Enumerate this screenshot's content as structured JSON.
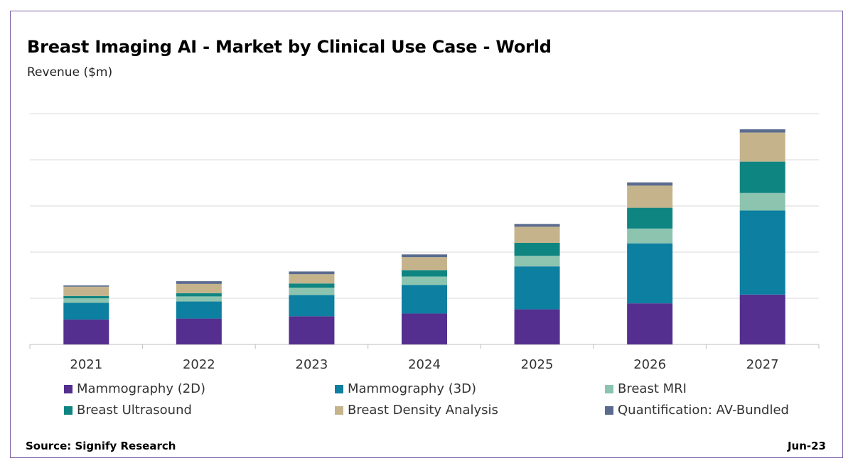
{
  "chart_data": {
    "type": "bar",
    "stacked": true,
    "title": "Breast Imaging AI - Market by Clinical Use Case - World",
    "subtitle": "Revenue ($m)",
    "ylabel": "",
    "xlabel": "",
    "categories": [
      "2021",
      "2022",
      "2023",
      "2024",
      "2025",
      "2026",
      "2027"
    ],
    "y_tick_labels_shown": false,
    "ylim": [
      0,
      500
    ],
    "grid": true,
    "legend_position": "bottom",
    "series": [
      {
        "name": "Mammography (2D)",
        "color": "#542f8f",
        "values": [
          54,
          56,
          61,
          67,
          76,
          89,
          108
        ]
      },
      {
        "name": "Mammography (3D)",
        "color": "#0d7fa0",
        "values": [
          36,
          37,
          46,
          62,
          93,
          130,
          182
        ]
      },
      {
        "name": "Breast MRI",
        "color": "#8dc4b0",
        "values": [
          10,
          11,
          16,
          18,
          23,
          32,
          38
        ]
      },
      {
        "name": "Breast Ultrasound",
        "color": "#0f8582",
        "values": [
          5,
          7,
          9,
          14,
          28,
          45,
          68
        ]
      },
      {
        "name": "Breast Density Analysis",
        "color": "#c5b48b",
        "values": [
          20,
          20,
          20,
          28,
          35,
          48,
          63
        ]
      },
      {
        "name": "Quantification: AV-Bundled",
        "color": "#5a6b8e",
        "values": [
          3,
          6,
          6,
          6,
          6,
          7,
          7
        ]
      }
    ]
  },
  "footer": {
    "source": "Source: Signify Research",
    "date": "Jun-23"
  }
}
